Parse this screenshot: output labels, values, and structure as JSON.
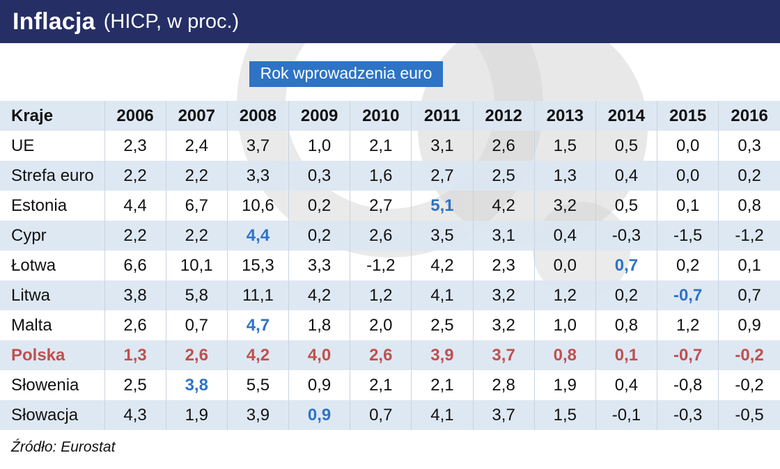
{
  "header": {
    "title": "Inflacja",
    "subtitle": "(HICP, w proc.)"
  },
  "badge": {
    "label": "Rok wprowadzenia euro"
  },
  "colors": {
    "navy": "#252f66",
    "accent_blue": "#2e73c5",
    "highlight_red": "#c0504d",
    "row_alt": "#dce7f2"
  },
  "chart_data": {
    "type": "table",
    "title": "Inflacja (HICP, w proc.)",
    "legend_note": "Rok wprowadzenia euro",
    "columns": [
      "Kraje",
      "2006",
      "2007",
      "2008",
      "2009",
      "2010",
      "2011",
      "2012",
      "2013",
      "2014",
      "2015",
      "2016"
    ],
    "rows": [
      {
        "country": "UE",
        "values": [
          "2,3",
          "2,4",
          "3,7",
          "1,0",
          "2,1",
          "3,1",
          "2,6",
          "1,5",
          "0,5",
          "0,0",
          "0,3"
        ],
        "euro_year": null,
        "emphasis": null
      },
      {
        "country": "Strefa euro",
        "values": [
          "2,2",
          "2,2",
          "3,3",
          "0,3",
          "1,6",
          "2,7",
          "2,5",
          "1,3",
          "0,4",
          "0,0",
          "0,2"
        ],
        "euro_year": null,
        "emphasis": null
      },
      {
        "country": "Estonia",
        "values": [
          "4,4",
          "6,7",
          "10,6",
          "0,2",
          "2,7",
          "5,1",
          "4,2",
          "3,2",
          "0,5",
          "0,1",
          "0,8"
        ],
        "euro_year": "2011",
        "emphasis": null
      },
      {
        "country": "Cypr",
        "values": [
          "2,2",
          "2,2",
          "4,4",
          "0,2",
          "2,6",
          "3,5",
          "3,1",
          "0,4",
          "-0,3",
          "-1,5",
          "-1,2"
        ],
        "euro_year": "2008",
        "emphasis": null
      },
      {
        "country": "Łotwa",
        "values": [
          "6,6",
          "10,1",
          "15,3",
          "3,3",
          "-1,2",
          "4,2",
          "2,3",
          "0,0",
          "0,7",
          "0,2",
          "0,1"
        ],
        "euro_year": "2014",
        "emphasis": null
      },
      {
        "country": "Litwa",
        "values": [
          "3,8",
          "5,8",
          "11,1",
          "4,2",
          "1,2",
          "4,1",
          "3,2",
          "1,2",
          "0,2",
          "-0,7",
          "0,7"
        ],
        "euro_year": "2015",
        "emphasis": null
      },
      {
        "country": "Malta",
        "values": [
          "2,6",
          "0,7",
          "4,7",
          "1,8",
          "2,0",
          "2,5",
          "3,2",
          "1,0",
          "0,8",
          "1,2",
          "0,9"
        ],
        "euro_year": "2008",
        "emphasis": null
      },
      {
        "country": "Polska",
        "values": [
          "1,3",
          "2,6",
          "4,2",
          "4,0",
          "2,6",
          "3,9",
          "3,7",
          "0,8",
          "0,1",
          "-0,7",
          "-0,2"
        ],
        "euro_year": null,
        "emphasis": "red"
      },
      {
        "country": "Słowenia",
        "values": [
          "2,5",
          "3,8",
          "5,5",
          "0,9",
          "2,1",
          "2,1",
          "2,8",
          "1,9",
          "0,4",
          "-0,8",
          "-0,2"
        ],
        "euro_year": "2007",
        "emphasis": null
      },
      {
        "country": "Słowacja",
        "values": [
          "4,3",
          "1,9",
          "3,9",
          "0,9",
          "0,7",
          "4,1",
          "3,7",
          "1,5",
          "-0,1",
          "-0,3",
          "-0,5"
        ],
        "euro_year": "2009",
        "emphasis": null
      }
    ]
  },
  "footer": {
    "source": "Źródło: Eurostat"
  }
}
